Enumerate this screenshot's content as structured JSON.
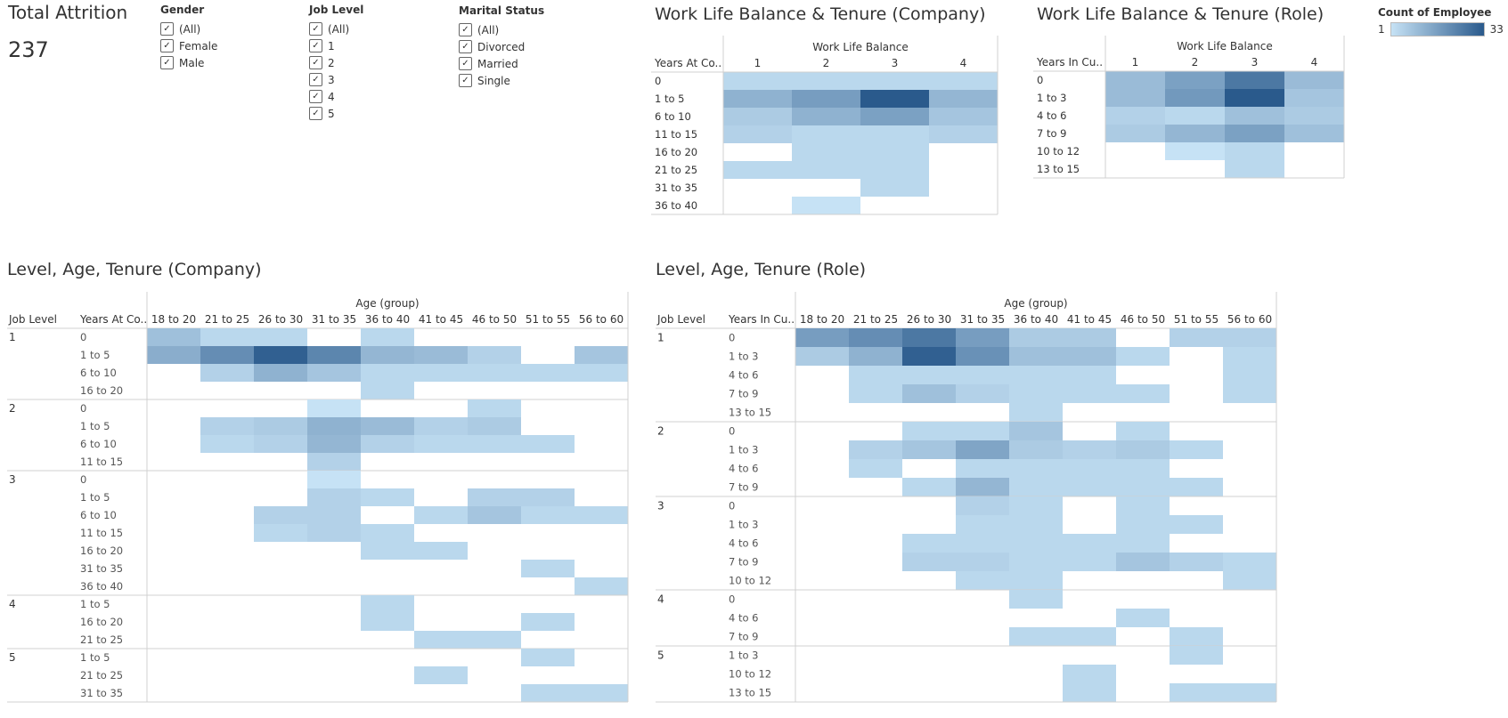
{
  "kpi": {
    "title": "Total Attrition",
    "value": "237"
  },
  "filters": [
    {
      "title": "Gender",
      "options": [
        "(All)",
        "Female",
        "Male"
      ]
    },
    {
      "title": "Job Level",
      "options": [
        "(All)",
        "1",
        "2",
        "3",
        "4",
        "5"
      ]
    },
    {
      "title": "Marital Status",
      "options": [
        "(All)",
        "Divorced",
        "Married",
        "Single"
      ]
    }
  ],
  "legend": {
    "title": "Count of Employee",
    "min": "1",
    "max": "33"
  },
  "colors": {
    "low": "#c6e2f5",
    "high": "#2a5a8c",
    "grid": "#d0d0d0",
    "text": "#333333",
    "muted": "#555555"
  },
  "chart_data": [
    {
      "type": "heatmap",
      "title": "Work Life Balance & Tenure (Company)",
      "col_header": "Work Life Balance",
      "row_header": "Years At Co..",
      "columns": [
        "1",
        "2",
        "3",
        "4"
      ],
      "rows": [
        "0",
        "1 to 5",
        "6 to 10",
        "11 to 15",
        "16 to 20",
        "21 to 25",
        "31 to 35",
        "36 to 40"
      ],
      "values": [
        [
          2,
          2,
          2,
          2
        ],
        [
          9,
          14,
          33,
          8
        ],
        [
          4,
          9,
          13,
          5
        ],
        [
          3,
          2,
          2,
          3
        ],
        [
          0,
          2,
          2,
          0
        ],
        [
          2,
          2,
          2,
          0
        ],
        [
          0,
          0,
          2,
          0
        ],
        [
          0,
          1,
          0,
          0
        ]
      ]
    },
    {
      "type": "heatmap",
      "title": "Work Life Balance & Tenure (Role)",
      "col_header": "Work Life Balance",
      "row_header": "Years In Cu..",
      "columns": [
        "1",
        "2",
        "3",
        "4"
      ],
      "rows": [
        "0",
        "1 to 3",
        "4 to 6",
        "7 to 9",
        "10 to 12",
        "13 to 15"
      ],
      "values": [
        [
          7,
          13,
          24,
          7
        ],
        [
          7,
          15,
          33,
          5
        ],
        [
          3,
          2,
          6,
          4
        ],
        [
          4,
          8,
          13,
          6
        ],
        [
          0,
          1,
          2,
          0
        ],
        [
          0,
          0,
          2,
          0
        ]
      ]
    },
    {
      "type": "heatmap",
      "title": "Level, Age, Tenure (Company)",
      "col_header": "Age (group)",
      "row_headers": [
        "Job Level",
        "Years At Co.."
      ],
      "columns": [
        "18 to 20",
        "21 to 25",
        "26 to 30",
        "31 to 35",
        "36 to 40",
        "41 to 45",
        "46 to 50",
        "51 to 55",
        "56 to 60"
      ],
      "groups": [
        {
          "level": "1",
          "rows": [
            "0",
            "1 to 5",
            "6 to 10",
            "16 to 20"
          ],
          "values": [
            [
              6,
              2,
              2,
              0,
              2,
              0,
              0,
              0,
              0
            ],
            [
              10,
              18,
              31,
              20,
              8,
              7,
              3,
              0,
              5
            ],
            [
              0,
              3,
              9,
              5,
              2,
              2,
              2,
              2,
              2
            ],
            [
              0,
              0,
              0,
              0,
              2,
              0,
              0,
              0,
              0
            ]
          ]
        },
        {
          "level": "2",
          "rows": [
            "0",
            "1 to 5",
            "6 to 10",
            "11 to 15"
          ],
          "values": [
            [
              0,
              0,
              0,
              1,
              0,
              0,
              2,
              0,
              0
            ],
            [
              0,
              3,
              4,
              9,
              7,
              3,
              4,
              0,
              0
            ],
            [
              0,
              2,
              3,
              8,
              3,
              2,
              2,
              2,
              0
            ],
            [
              0,
              0,
              0,
              3,
              0,
              0,
              0,
              0,
              0
            ]
          ]
        },
        {
          "level": "3",
          "rows": [
            "0",
            "1 to 5",
            "6 to 10",
            "11 to 15",
            "16 to 20",
            "31 to 35",
            "36 to 40"
          ],
          "values": [
            [
              0,
              0,
              0,
              1,
              0,
              0,
              0,
              0,
              0
            ],
            [
              0,
              0,
              0,
              3,
              2,
              0,
              3,
              3,
              0
            ],
            [
              0,
              0,
              3,
              3,
              0,
              2,
              5,
              2,
              2
            ],
            [
              0,
              0,
              2,
              3,
              2,
              0,
              0,
              0,
              0
            ],
            [
              0,
              0,
              0,
              0,
              2,
              2,
              0,
              0,
              0
            ],
            [
              0,
              0,
              0,
              0,
              0,
              0,
              0,
              2,
              0
            ],
            [
              0,
              0,
              0,
              0,
              0,
              0,
              0,
              0,
              2
            ]
          ]
        },
        {
          "level": "4",
          "rows": [
            "1 to 5",
            "16 to 20",
            "21 to 25"
          ],
          "values": [
            [
              0,
              0,
              0,
              0,
              2,
              0,
              0,
              0,
              0
            ],
            [
              0,
              0,
              0,
              0,
              2,
              0,
              0,
              2,
              0
            ],
            [
              0,
              0,
              0,
              0,
              0,
              2,
              2,
              0,
              0
            ]
          ]
        },
        {
          "level": "5",
          "rows": [
            "1 to 5",
            "21 to 25",
            "31 to 35"
          ],
          "values": [
            [
              0,
              0,
              0,
              0,
              0,
              0,
              0,
              2,
              0
            ],
            [
              0,
              0,
              0,
              0,
              0,
              2,
              0,
              0,
              0
            ],
            [
              0,
              0,
              0,
              0,
              0,
              0,
              0,
              2,
              2
            ]
          ]
        }
      ]
    },
    {
      "type": "heatmap",
      "title": "Level, Age, Tenure (Role)",
      "col_header": "Age (group)",
      "row_headers": [
        "Job Level",
        "Years In Cu.."
      ],
      "columns": [
        "18 to 20",
        "21 to 25",
        "26 to 30",
        "31 to 35",
        "36 to 40",
        "41 to 45",
        "46 to 50",
        "51 to 55",
        "56 to 60"
      ],
      "groups": [
        {
          "level": "1",
          "rows": [
            "0",
            "1 to 3",
            "4 to 6",
            "7 to 9",
            "13 to 15"
          ],
          "values": [
            [
              14,
              18,
              24,
              14,
              4,
              4,
              0,
              3,
              3
            ],
            [
              4,
              9,
              31,
              17,
              6,
              6,
              2,
              0,
              2
            ],
            [
              0,
              2,
              2,
              2,
              2,
              2,
              0,
              0,
              2
            ],
            [
              0,
              2,
              6,
              3,
              2,
              2,
              2,
              0,
              2
            ],
            [
              0,
              0,
              0,
              0,
              2,
              0,
              0,
              0,
              0
            ]
          ]
        },
        {
          "level": "2",
          "rows": [
            "0",
            "1 to 3",
            "4 to 6",
            "7 to 9"
          ],
          "values": [
            [
              0,
              0,
              2,
              2,
              5,
              0,
              2,
              0,
              0
            ],
            [
              0,
              3,
              5,
              12,
              4,
              3,
              4,
              2,
              0
            ],
            [
              0,
              2,
              0,
              2,
              2,
              2,
              2,
              0,
              0
            ],
            [
              0,
              0,
              2,
              8,
              2,
              2,
              2,
              2,
              0
            ]
          ]
        },
        {
          "level": "3",
          "rows": [
            "0",
            "1 to 3",
            "4 to 6",
            "7 to 9",
            "10 to 12"
          ],
          "values": [
            [
              0,
              0,
              0,
              3,
              2,
              0,
              2,
              0,
              0
            ],
            [
              0,
              0,
              0,
              2,
              2,
              0,
              2,
              2,
              0
            ],
            [
              0,
              0,
              2,
              2,
              2,
              2,
              2,
              0,
              0
            ],
            [
              0,
              0,
              3,
              3,
              2,
              2,
              5,
              3,
              2
            ],
            [
              0,
              0,
              0,
              2,
              2,
              0,
              0,
              0,
              2
            ]
          ]
        },
        {
          "level": "4",
          "rows": [
            "0",
            "4 to 6",
            "7 to 9"
          ],
          "values": [
            [
              0,
              0,
              0,
              0,
              2,
              0,
              0,
              0,
              0
            ],
            [
              0,
              0,
              0,
              0,
              0,
              0,
              2,
              0,
              0
            ],
            [
              0,
              0,
              0,
              0,
              2,
              2,
              0,
              2,
              0
            ]
          ]
        },
        {
          "level": "5",
          "rows": [
            "1 to 3",
            "10 to 12",
            "13 to 15"
          ],
          "values": [
            [
              0,
              0,
              0,
              0,
              0,
              0,
              0,
              2,
              0
            ],
            [
              0,
              0,
              0,
              0,
              0,
              2,
              0,
              0,
              0
            ],
            [
              0,
              0,
              0,
              0,
              0,
              2,
              0,
              2,
              2
            ]
          ]
        }
      ]
    }
  ]
}
